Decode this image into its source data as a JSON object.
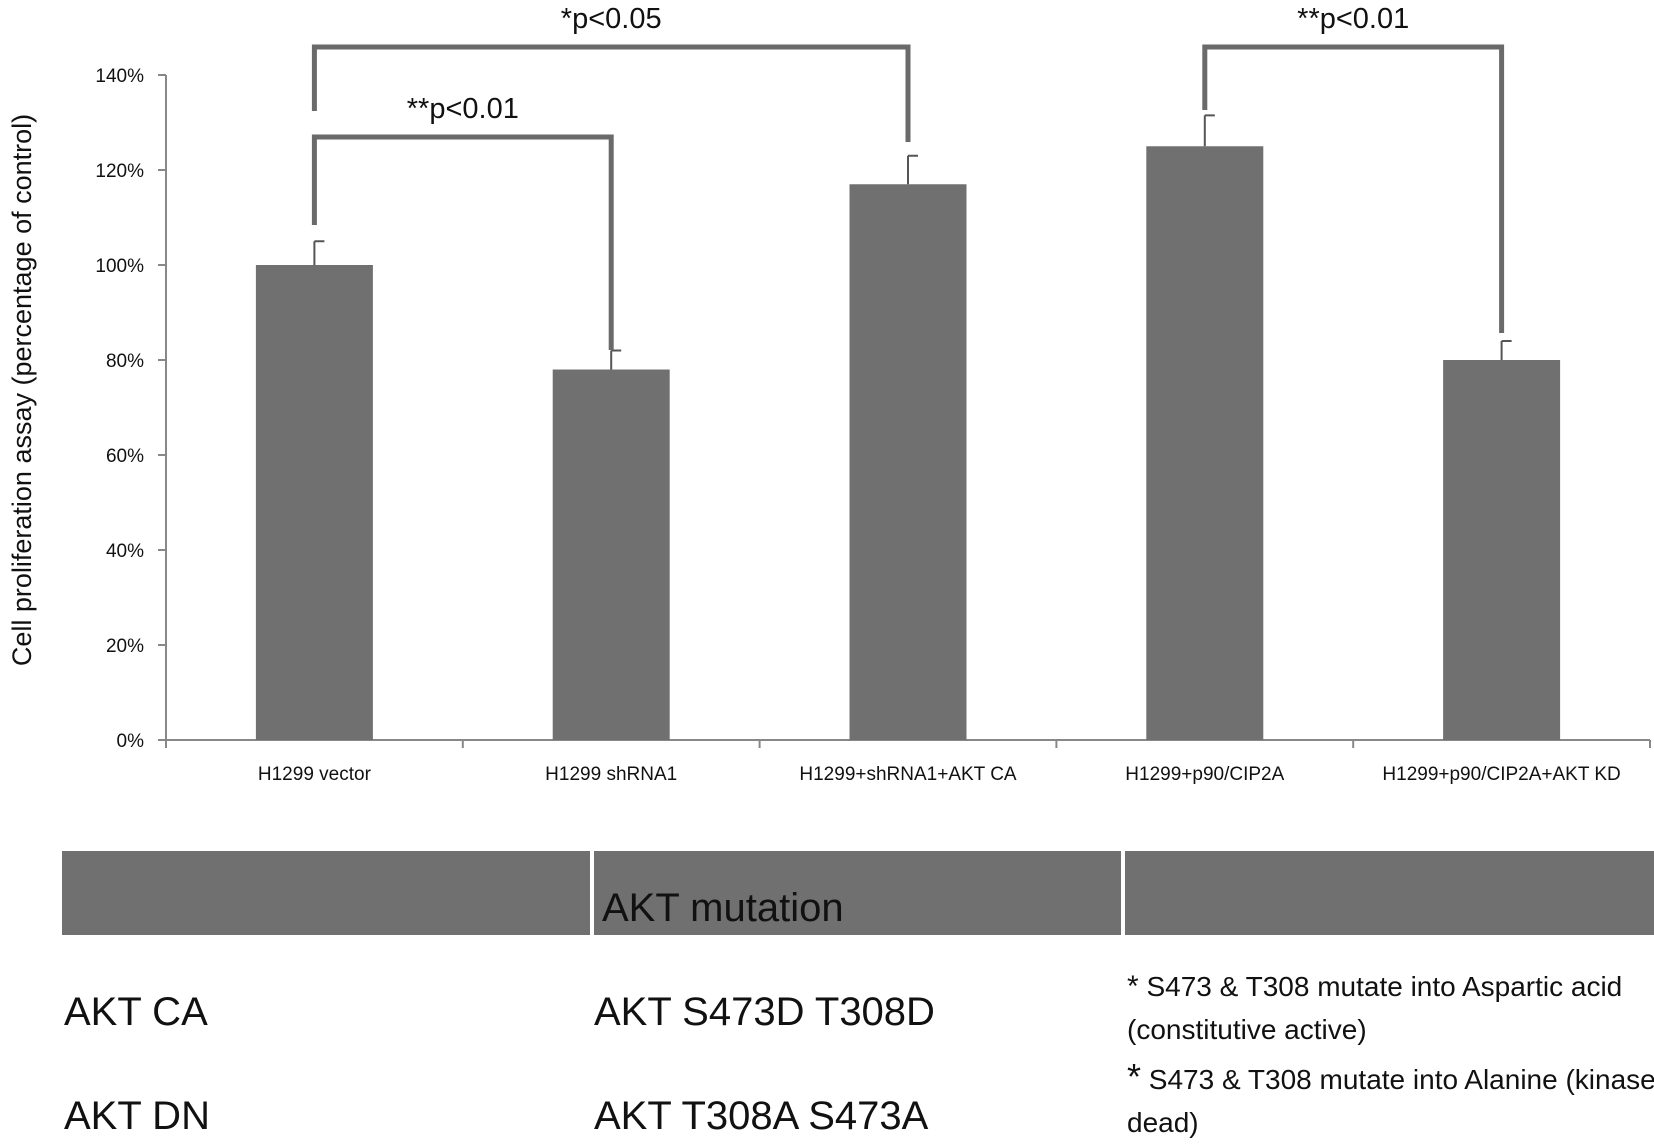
{
  "chart_data": {
    "type": "bar",
    "ylabel": "Cell proliferation assay (percentage of control)",
    "categories": [
      "H1299 vector",
      "H1299 shRNA1",
      "H1299+shRNA1+AKT CA",
      "H1299+p90/CIP2A",
      "H1299+p90/CIP2A+AKT KD"
    ],
    "values": [
      100,
      78,
      117,
      125,
      80
    ],
    "errors": [
      5,
      4,
      6,
      6.5,
      4
    ],
    "ylim": [
      0,
      140
    ],
    "yticks": [
      "0%",
      "20%",
      "40%",
      "60%",
      "80%",
      "100%",
      "120%",
      "140%"
    ],
    "bar_color": "#707070",
    "grid": false,
    "annotations": [
      {
        "label": "**p<0.01",
        "from": 0,
        "to": 1
      },
      {
        "label": "*p<0.05",
        "from": 0,
        "to": 2
      },
      {
        "label": "**p<0.01",
        "from": 3,
        "to": 4
      }
    ]
  },
  "table": {
    "header": [
      "",
      "AKT mutation",
      ""
    ],
    "rows": [
      {
        "name": "AKT CA",
        "mutation": "AKT S473D T308D"
      },
      {
        "name": "AKT DN",
        "mutation": "AKT T308A S473A"
      }
    ],
    "notes": [
      {
        "star": "*",
        "text": "S473 & T308 mutate into Aspartic acid (constitutive active)"
      },
      {
        "star": "*",
        "text": "S473 & T308 mutate into Alanine (kinase dead)"
      }
    ]
  }
}
